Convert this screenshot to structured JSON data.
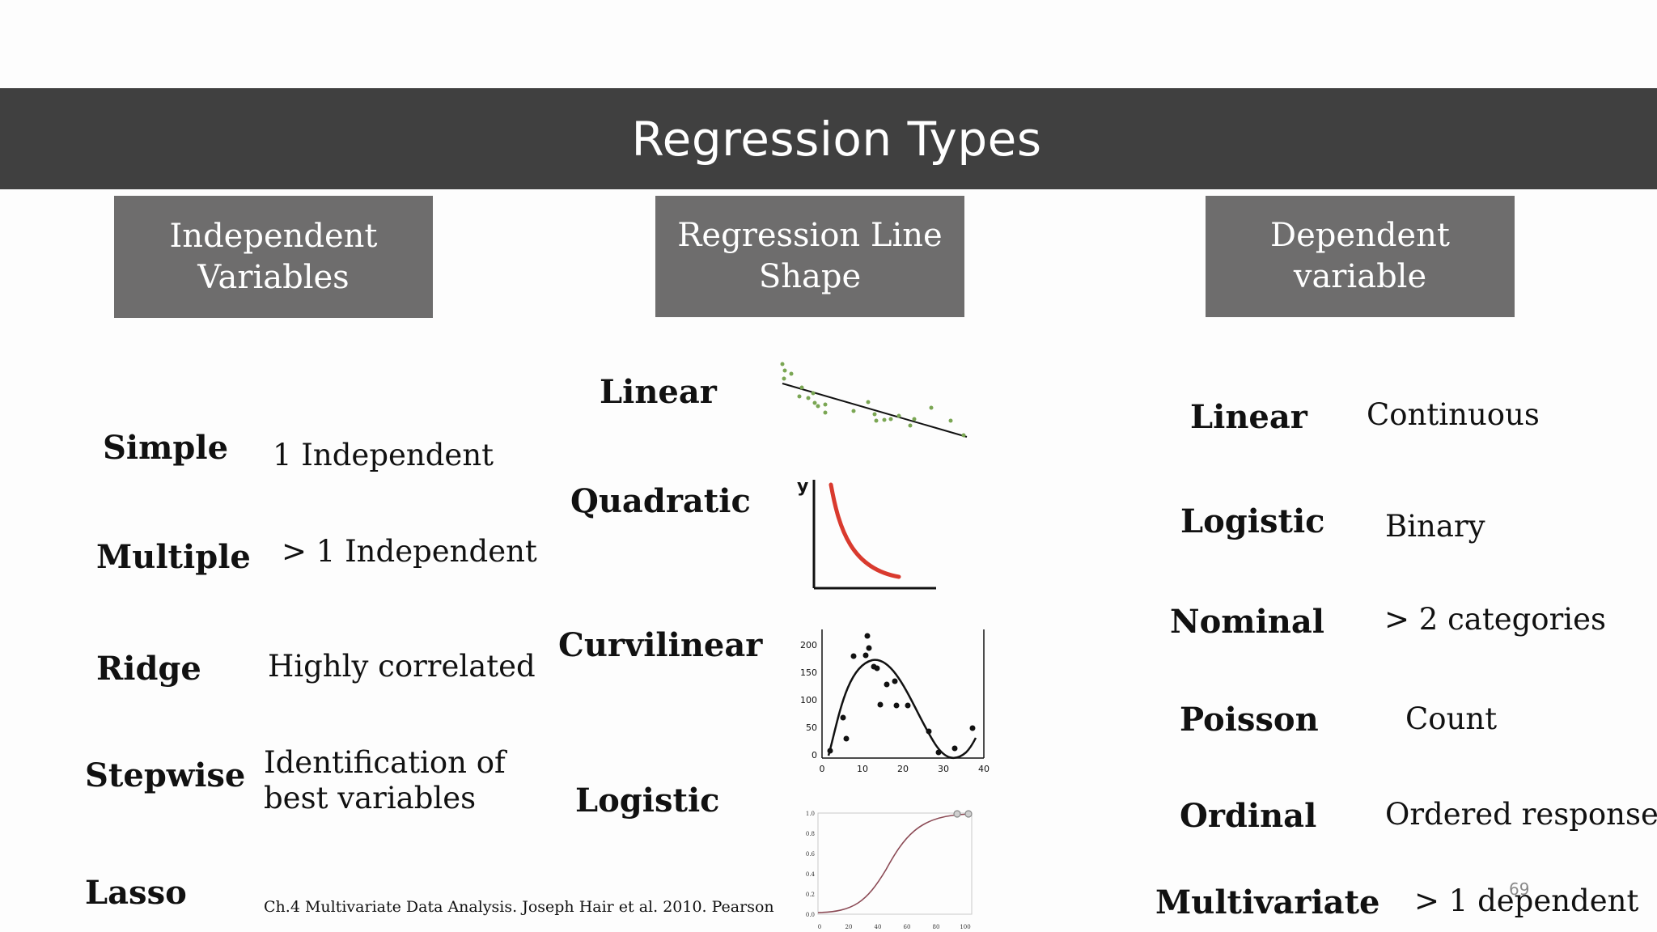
{
  "title": "Regression Types",
  "headers": {
    "independent": "Independent\nVariables",
    "shape": "Regression Line\nShape",
    "dependent": "Dependent\nvariable"
  },
  "independent": [
    {
      "term": "Simple",
      "desc": "1 Independent"
    },
    {
      "term": "Multiple",
      "desc": "> 1 Independent"
    },
    {
      "term": "Ridge",
      "desc": "Highly correlated"
    },
    {
      "term": "Stepwise",
      "desc": "Identification of",
      "desc2": "best variables"
    },
    {
      "term": "Lasso"
    }
  ],
  "shape": [
    {
      "term": "Linear"
    },
    {
      "term": "Quadratic"
    },
    {
      "term": "Curvilinear"
    },
    {
      "term": "Logistic"
    }
  ],
  "dependent": [
    {
      "term": "Linear",
      "desc": "Continuous"
    },
    {
      "term": "Logistic",
      "desc": "Binary"
    },
    {
      "term": "Nominal",
      "desc": "> 2 categories"
    },
    {
      "term": "Poisson",
      "desc": "Count"
    },
    {
      "term": "Ordinal",
      "desc": "Ordered response"
    },
    {
      "term": "Multivariate",
      "desc": "> 1 dependent"
    }
  ],
  "citation": "Ch.4 Multivariate Data Analysis. Joseph Hair et al. 2010. Pearson",
  "page_number": "69",
  "figures": {
    "quadratic": {
      "y_axis_label": "y"
    },
    "curvilinear": {
      "y_ticks": [
        "200",
        "150",
        "100",
        "50",
        "0"
      ],
      "x_ticks": [
        "0",
        "10",
        "20",
        "30",
        "40"
      ]
    },
    "logistic": {
      "y_ticks": [
        "1.0",
        "0.8",
        "0.6",
        "0.4",
        "0.2",
        "0.0"
      ],
      "x_ticks": [
        "0",
        "20",
        "40",
        "60",
        "80",
        "100"
      ]
    }
  },
  "colors": {
    "title_bar": "#404040",
    "header_box": "#6e6d6d",
    "scatter_points": "#7aa653",
    "quadratic_curve": "#d93a2e",
    "logistic_curve": "#8b4a55"
  }
}
